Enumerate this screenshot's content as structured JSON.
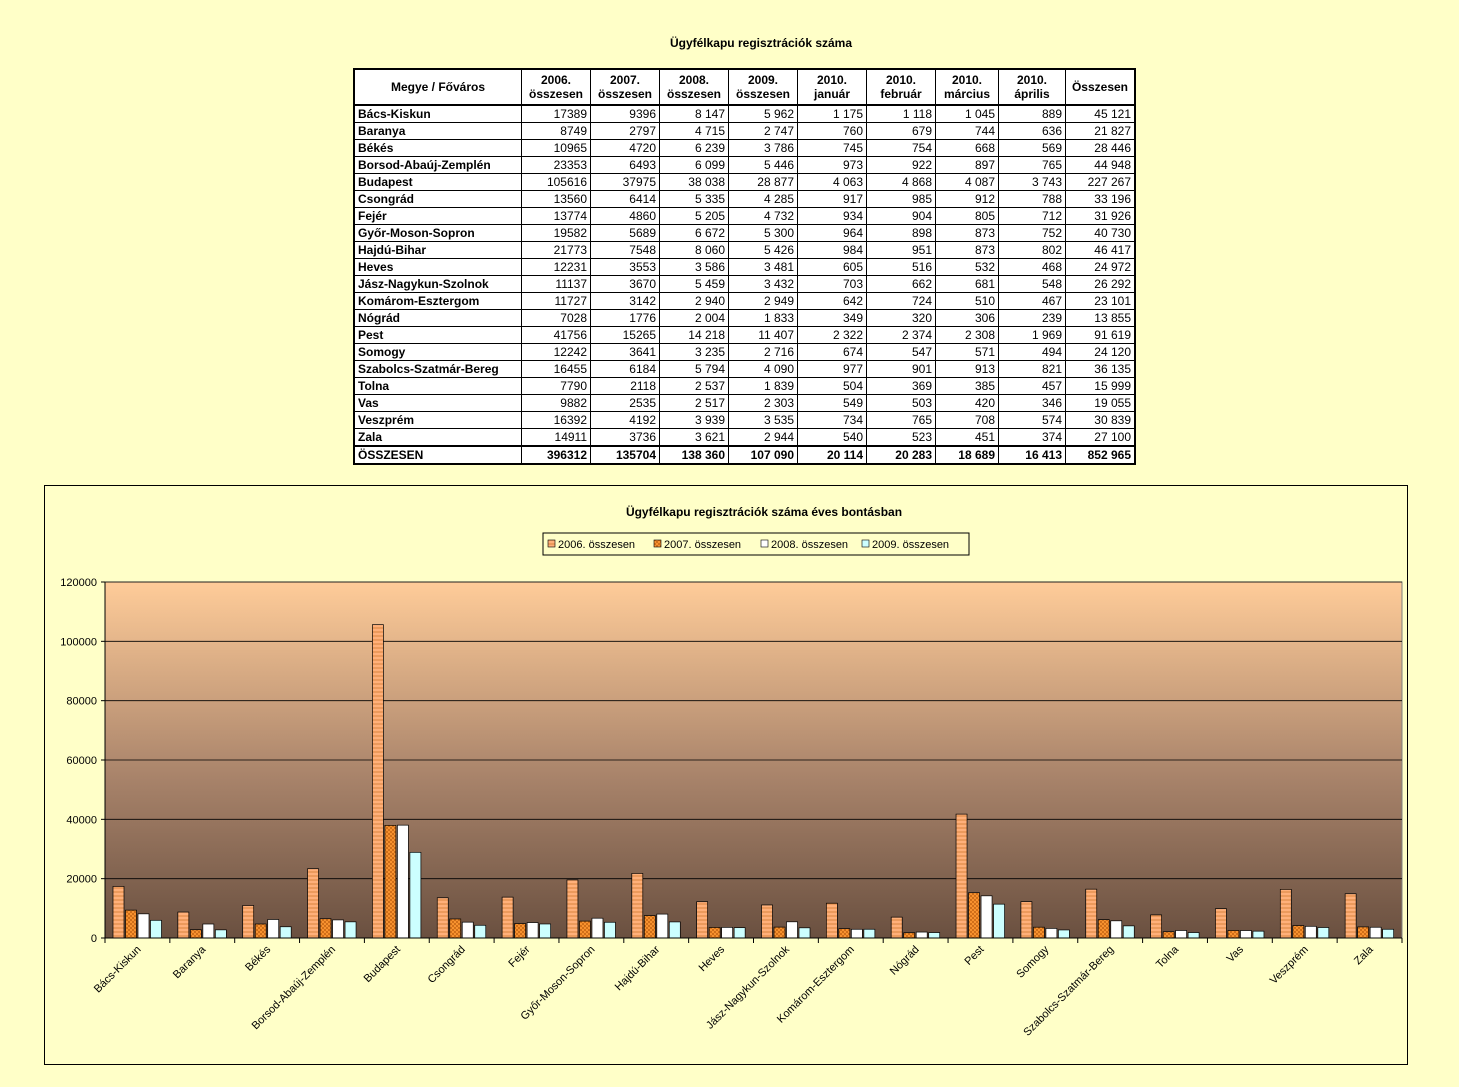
{
  "table": {
    "title": "Ügyfélkapu regisztrációk száma",
    "headers": [
      [
        "Megye / Főváros"
      ],
      [
        "2006.",
        "összesen"
      ],
      [
        "2007.",
        "összesen"
      ],
      [
        "2008.",
        "összesen"
      ],
      [
        "2009.",
        "összesen"
      ],
      [
        "2010.",
        "január"
      ],
      [
        "2010.",
        "február"
      ],
      [
        "2010.",
        "március"
      ],
      [
        "2010.",
        "április"
      ],
      [
        "Összesen"
      ]
    ],
    "rows": [
      [
        "Bács-Kiskun",
        "17389",
        "9396",
        "8 147",
        "5 962",
        "1 175",
        "1 118",
        "1 045",
        "889",
        "45 121"
      ],
      [
        "Baranya",
        "8749",
        "2797",
        "4 715",
        "2 747",
        "760",
        "679",
        "744",
        "636",
        "21 827"
      ],
      [
        "Békés",
        "10965",
        "4720",
        "6 239",
        "3 786",
        "745",
        "754",
        "668",
        "569",
        "28 446"
      ],
      [
        "Borsod-Abaúj-Zemplén",
        "23353",
        "6493",
        "6 099",
        "5 446",
        "973",
        "922",
        "897",
        "765",
        "44 948"
      ],
      [
        "Budapest",
        "105616",
        "37975",
        "38 038",
        "28 877",
        "4 063",
        "4 868",
        "4 087",
        "3 743",
        "227 267"
      ],
      [
        "Csongrád",
        "13560",
        "6414",
        "5 335",
        "4 285",
        "917",
        "985",
        "912",
        "788",
        "33 196"
      ],
      [
        "Fejér",
        "13774",
        "4860",
        "5 205",
        "4 732",
        "934",
        "904",
        "805",
        "712",
        "31 926"
      ],
      [
        "Győr-Moson-Sopron",
        "19582",
        "5689",
        "6 672",
        "5 300",
        "964",
        "898",
        "873",
        "752",
        "40 730"
      ],
      [
        "Hajdú-Bihar",
        "21773",
        "7548",
        "8 060",
        "5 426",
        "984",
        "951",
        "873",
        "802",
        "46 417"
      ],
      [
        "Heves",
        "12231",
        "3553",
        "3 586",
        "3 481",
        "605",
        "516",
        "532",
        "468",
        "24 972"
      ],
      [
        "Jász-Nagykun-Szolnok",
        "11137",
        "3670",
        "5 459",
        "3 432",
        "703",
        "662",
        "681",
        "548",
        "26 292"
      ],
      [
        "Komárom-Esztergom",
        "11727",
        "3142",
        "2 940",
        "2 949",
        "642",
        "724",
        "510",
        "467",
        "23 101"
      ],
      [
        "Nógrád",
        "7028",
        "1776",
        "2 004",
        "1 833",
        "349",
        "320",
        "306",
        "239",
        "13 855"
      ],
      [
        "Pest",
        "41756",
        "15265",
        "14 218",
        "11 407",
        "2 322",
        "2 374",
        "2 308",
        "1 969",
        "91 619"
      ],
      [
        "Somogy",
        "12242",
        "3641",
        "3 235",
        "2 716",
        "674",
        "547",
        "571",
        "494",
        "24 120"
      ],
      [
        "Szabolcs-Szatmár-Bereg",
        "16455",
        "6184",
        "5 794",
        "4 090",
        "977",
        "901",
        "913",
        "821",
        "36 135"
      ],
      [
        "Tolna",
        "7790",
        "2118",
        "2 537",
        "1 839",
        "504",
        "369",
        "385",
        "457",
        "15 999"
      ],
      [
        "Vas",
        "9882",
        "2535",
        "2 517",
        "2 303",
        "549",
        "503",
        "420",
        "346",
        "19 055"
      ],
      [
        "Veszprém",
        "16392",
        "4192",
        "3 939",
        "3 535",
        "734",
        "765",
        "708",
        "574",
        "30 839"
      ],
      [
        "Zala",
        "14911",
        "3736",
        "3 621",
        "2 944",
        "540",
        "523",
        "451",
        "374",
        "27 100"
      ]
    ],
    "total": [
      "ÖSSZESEN",
      "396312",
      "135704",
      "138 360",
      "107 090",
      "20 114",
      "20 283",
      "18 689",
      "16 413",
      "852 965"
    ]
  },
  "chart_data": {
    "type": "bar",
    "title": "Ügyfélkapu regisztrációk száma éves bontásban",
    "xlabel": "",
    "ylabel": "",
    "ylim": [
      0,
      120000
    ],
    "yticks": [
      0,
      20000,
      40000,
      60000,
      80000,
      100000,
      120000
    ],
    "grid": true,
    "legend_position": "top",
    "categories": [
      "Bács-Kiskun",
      "Baranya",
      "Békés",
      "Borsod-Abaúj-Zemplén",
      "Budapest",
      "Csongrád",
      "Fejér",
      "Győr-Moson-Sopron",
      "Hajdú-Bihar",
      "Heves",
      "Jász-Nagykun-Szolnok",
      "Komárom-Esztergom",
      "Nógrád",
      "Pest",
      "Somogy",
      "Szabolcs-Szatmár-Bereg",
      "Tolna",
      "Vas",
      "Veszprém",
      "Zala"
    ],
    "series": [
      {
        "name": "2006. összesen",
        "color": "#ffb07a",
        "values": [
          17389,
          8749,
          10965,
          23353,
          105616,
          13560,
          13774,
          19582,
          21773,
          12231,
          11137,
          11727,
          7028,
          41756,
          12242,
          16455,
          7790,
          9882,
          16392,
          14911
        ]
      },
      {
        "name": "2007. összesen",
        "color": "#ff9933",
        "values": [
          9396,
          2797,
          4720,
          6493,
          37975,
          6414,
          4860,
          5689,
          7548,
          3553,
          3670,
          3142,
          1776,
          15265,
          3641,
          6184,
          2118,
          2535,
          4192,
          3736
        ]
      },
      {
        "name": "2008. összesen",
        "color": "#ffffff",
        "values": [
          8147,
          4715,
          6239,
          6099,
          38038,
          5335,
          5205,
          6672,
          8060,
          3586,
          5459,
          2940,
          2004,
          14218,
          3235,
          5794,
          2537,
          2517,
          3939,
          3621
        ]
      },
      {
        "name": "2009. összesen",
        "color": "#ccffff",
        "values": [
          5962,
          2747,
          3786,
          5446,
          28877,
          4285,
          4732,
          5300,
          5426,
          3481,
          3432,
          2949,
          1833,
          11407,
          2716,
          4090,
          1839,
          2303,
          3535,
          2944
        ]
      }
    ]
  }
}
